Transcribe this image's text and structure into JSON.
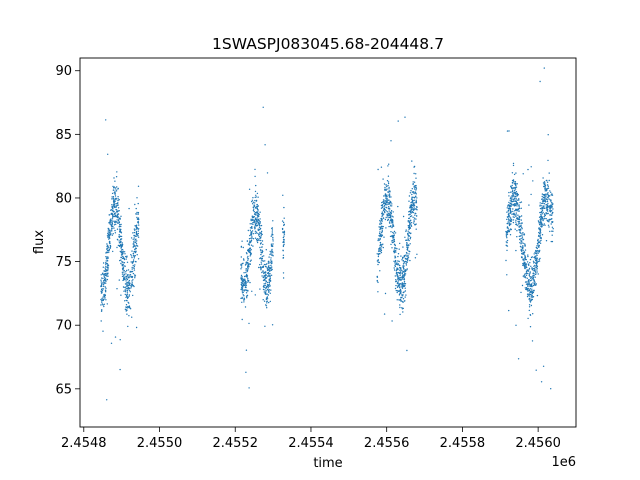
{
  "chart_data": {
    "type": "scatter",
    "title": "1SWASPJ083045.68-204448.7",
    "xlabel": "time",
    "ylabel": "flux",
    "x_offset_label": "1e6",
    "xlim": [
      2454790,
      2456100
    ],
    "ylim": [
      62,
      91
    ],
    "x_ticks": [
      2454800,
      2455000,
      2455200,
      2455400,
      2455600,
      2455800,
      2456000
    ],
    "x_tick_labels": [
      "2.4548",
      "2.4550",
      "2.4552",
      "2.4554",
      "2.4556",
      "2.4558",
      "2.4560"
    ],
    "y_ticks": [
      65,
      70,
      75,
      80,
      85,
      90
    ],
    "y_tick_labels": [
      "65",
      "70",
      "75",
      "80",
      "85",
      "90"
    ],
    "grid": false,
    "marker_color": "#1f77b4",
    "segments": [
      {
        "x_start": 2454845,
        "x_end": 2454945,
        "median_flux": 76,
        "spread": 3.5
      },
      {
        "x_start": 2455215,
        "x_end": 2455300,
        "median_flux": 76,
        "spread": 3
      },
      {
        "x_start": 2455325,
        "x_end": 2455330,
        "median_flux": 77,
        "spread": 0.7
      },
      {
        "x_start": 2455575,
        "x_end": 2455680,
        "median_flux": 76.5,
        "spread": 3.5
      },
      {
        "x_start": 2455915,
        "x_end": 2456040,
        "median_flux": 76.5,
        "spread": 3.5
      }
    ]
  }
}
